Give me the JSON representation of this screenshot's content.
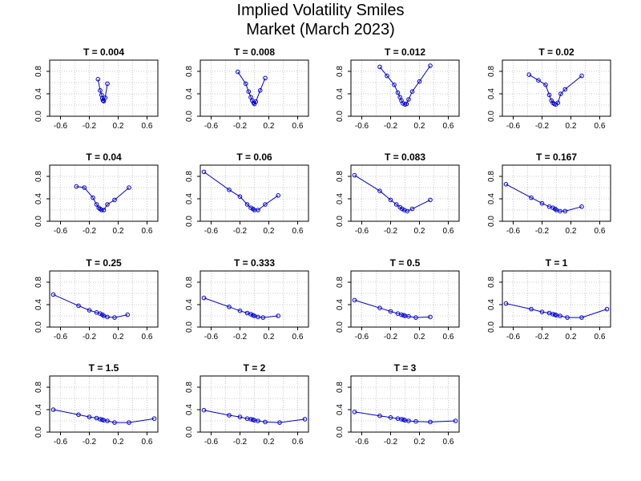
{
  "title": "Implied Volatility Smiles",
  "subtitle": "Market (March 2023)",
  "colors": {
    "series": "#0000cc",
    "grid": "#c8c8c8",
    "axis": "#000000"
  },
  "chart_data": {
    "type": "line",
    "layout": "4x4 grid of small multiples",
    "grid": true,
    "xlim": [
      -0.75,
      0.75
    ],
    "ylim": [
      0,
      1.0
    ],
    "xticks": [
      "-0.6",
      "-0.2",
      "0.2",
      "0.6"
    ],
    "xtick_values": [
      -0.6,
      -0.2,
      0.2,
      0.6
    ],
    "yticks": [
      "0.0",
      "0.4",
      "0.8"
    ],
    "ytick_values": [
      0,
      0.4,
      0.8
    ],
    "panels": [
      {
        "title": "T = 0.004",
        "x": [
          -0.08,
          -0.05,
          -0.03,
          -0.02,
          -0.01,
          0.0,
          0.02,
          0.05
        ],
        "y": [
          0.66,
          0.46,
          0.38,
          0.32,
          0.28,
          0.27,
          0.33,
          0.58
        ]
      },
      {
        "title": "T = 0.008",
        "x": [
          -0.23,
          -0.12,
          -0.08,
          -0.05,
          -0.03,
          -0.01,
          0.0,
          0.02,
          0.08,
          0.15
        ],
        "y": [
          0.79,
          0.58,
          0.44,
          0.34,
          0.28,
          0.24,
          0.22,
          0.26,
          0.46,
          0.68
        ]
      },
      {
        "title": "T = 0.012",
        "x": [
          -0.35,
          -0.25,
          -0.15,
          -0.1,
          -0.07,
          -0.05,
          -0.03,
          0.0,
          0.02,
          0.05,
          0.1,
          0.2,
          0.35
        ],
        "y": [
          0.88,
          0.72,
          0.56,
          0.42,
          0.34,
          0.28,
          0.23,
          0.21,
          0.22,
          0.3,
          0.44,
          0.62,
          0.9
        ]
      },
      {
        "title": "T = 0.02",
        "x": [
          -0.38,
          -0.25,
          -0.15,
          -0.1,
          -0.07,
          -0.05,
          -0.03,
          -0.01,
          0.02,
          0.06,
          0.12,
          0.35
        ],
        "y": [
          0.74,
          0.64,
          0.56,
          0.38,
          0.28,
          0.24,
          0.22,
          0.21,
          0.24,
          0.4,
          0.48,
          0.72
        ]
      },
      {
        "title": "T = 0.04",
        "x": [
          -0.38,
          -0.27,
          -0.15,
          -0.1,
          -0.07,
          -0.05,
          -0.03,
          0.0,
          0.05,
          0.15,
          0.35
        ],
        "y": [
          0.62,
          0.6,
          0.42,
          0.3,
          0.24,
          0.22,
          0.2,
          0.2,
          0.3,
          0.38,
          0.6
        ]
      },
      {
        "title": "T = 0.06",
        "x": [
          -0.7,
          -0.35,
          -0.2,
          -0.1,
          -0.05,
          -0.02,
          0.0,
          0.05,
          0.15,
          0.33
        ],
        "y": [
          0.88,
          0.56,
          0.44,
          0.3,
          0.24,
          0.22,
          0.2,
          0.2,
          0.3,
          0.46
        ]
      },
      {
        "title": "T = 0.083",
        "x": [
          -0.7,
          -0.35,
          -0.2,
          -0.12,
          -0.07,
          -0.04,
          -0.01,
          0.03,
          0.1,
          0.35
        ],
        "y": [
          0.82,
          0.54,
          0.38,
          0.3,
          0.25,
          0.22,
          0.2,
          0.18,
          0.22,
          0.38
        ]
      },
      {
        "title": "T = 0.167",
        "x": [
          -0.7,
          -0.35,
          -0.2,
          -0.1,
          -0.05,
          -0.02,
          0.0,
          0.05,
          0.12,
          0.35
        ],
        "y": [
          0.66,
          0.42,
          0.32,
          0.26,
          0.24,
          0.22,
          0.2,
          0.18,
          0.18,
          0.26
        ]
      },
      {
        "title": "T = 0.25",
        "x": [
          -0.7,
          -0.35,
          -0.2,
          -0.1,
          -0.05,
          -0.02,
          0.0,
          0.05,
          0.15,
          0.33
        ],
        "y": [
          0.58,
          0.38,
          0.3,
          0.26,
          0.24,
          0.22,
          0.2,
          0.18,
          0.17,
          0.22
        ]
      },
      {
        "title": "T = 0.333",
        "x": [
          -0.7,
          -0.35,
          -0.2,
          -0.1,
          -0.05,
          -0.02,
          0.0,
          0.05,
          0.12,
          0.33
        ],
        "y": [
          0.52,
          0.36,
          0.29,
          0.25,
          0.23,
          0.21,
          0.2,
          0.18,
          0.17,
          0.2
        ]
      },
      {
        "title": "T = 0.5",
        "x": [
          -0.7,
          -0.35,
          -0.2,
          -0.1,
          -0.05,
          -0.02,
          0.0,
          0.05,
          0.15,
          0.35
        ],
        "y": [
          0.48,
          0.34,
          0.28,
          0.24,
          0.22,
          0.21,
          0.2,
          0.19,
          0.17,
          0.18
        ]
      },
      {
        "title": "T = 1",
        "x": [
          -0.7,
          -0.35,
          -0.2,
          -0.1,
          -0.05,
          -0.02,
          0.0,
          0.05,
          0.15,
          0.35,
          0.7
        ],
        "y": [
          0.42,
          0.32,
          0.27,
          0.25,
          0.23,
          0.22,
          0.21,
          0.2,
          0.17,
          0.17,
          0.32
        ]
      },
      {
        "title": "T = 1.5",
        "x": [
          -0.7,
          -0.35,
          -0.2,
          -0.1,
          -0.05,
          -0.02,
          0.0,
          0.05,
          0.15,
          0.35,
          0.7
        ],
        "y": [
          0.4,
          0.31,
          0.27,
          0.25,
          0.23,
          0.22,
          0.21,
          0.2,
          0.17,
          0.17,
          0.24
        ]
      },
      {
        "title": "T = 2",
        "x": [
          -0.7,
          -0.35,
          -0.2,
          -0.1,
          -0.05,
          -0.02,
          0.0,
          0.05,
          0.15,
          0.35,
          0.7
        ],
        "y": [
          0.39,
          0.3,
          0.27,
          0.24,
          0.23,
          0.22,
          0.21,
          0.2,
          0.18,
          0.17,
          0.23
        ]
      },
      {
        "title": "T = 3",
        "x": [
          -0.7,
          -0.35,
          -0.2,
          -0.1,
          -0.05,
          -0.02,
          0.0,
          0.05,
          0.15,
          0.35,
          0.7
        ],
        "y": [
          0.36,
          0.29,
          0.26,
          0.24,
          0.23,
          0.22,
          0.21,
          0.2,
          0.19,
          0.18,
          0.2
        ]
      }
    ]
  }
}
